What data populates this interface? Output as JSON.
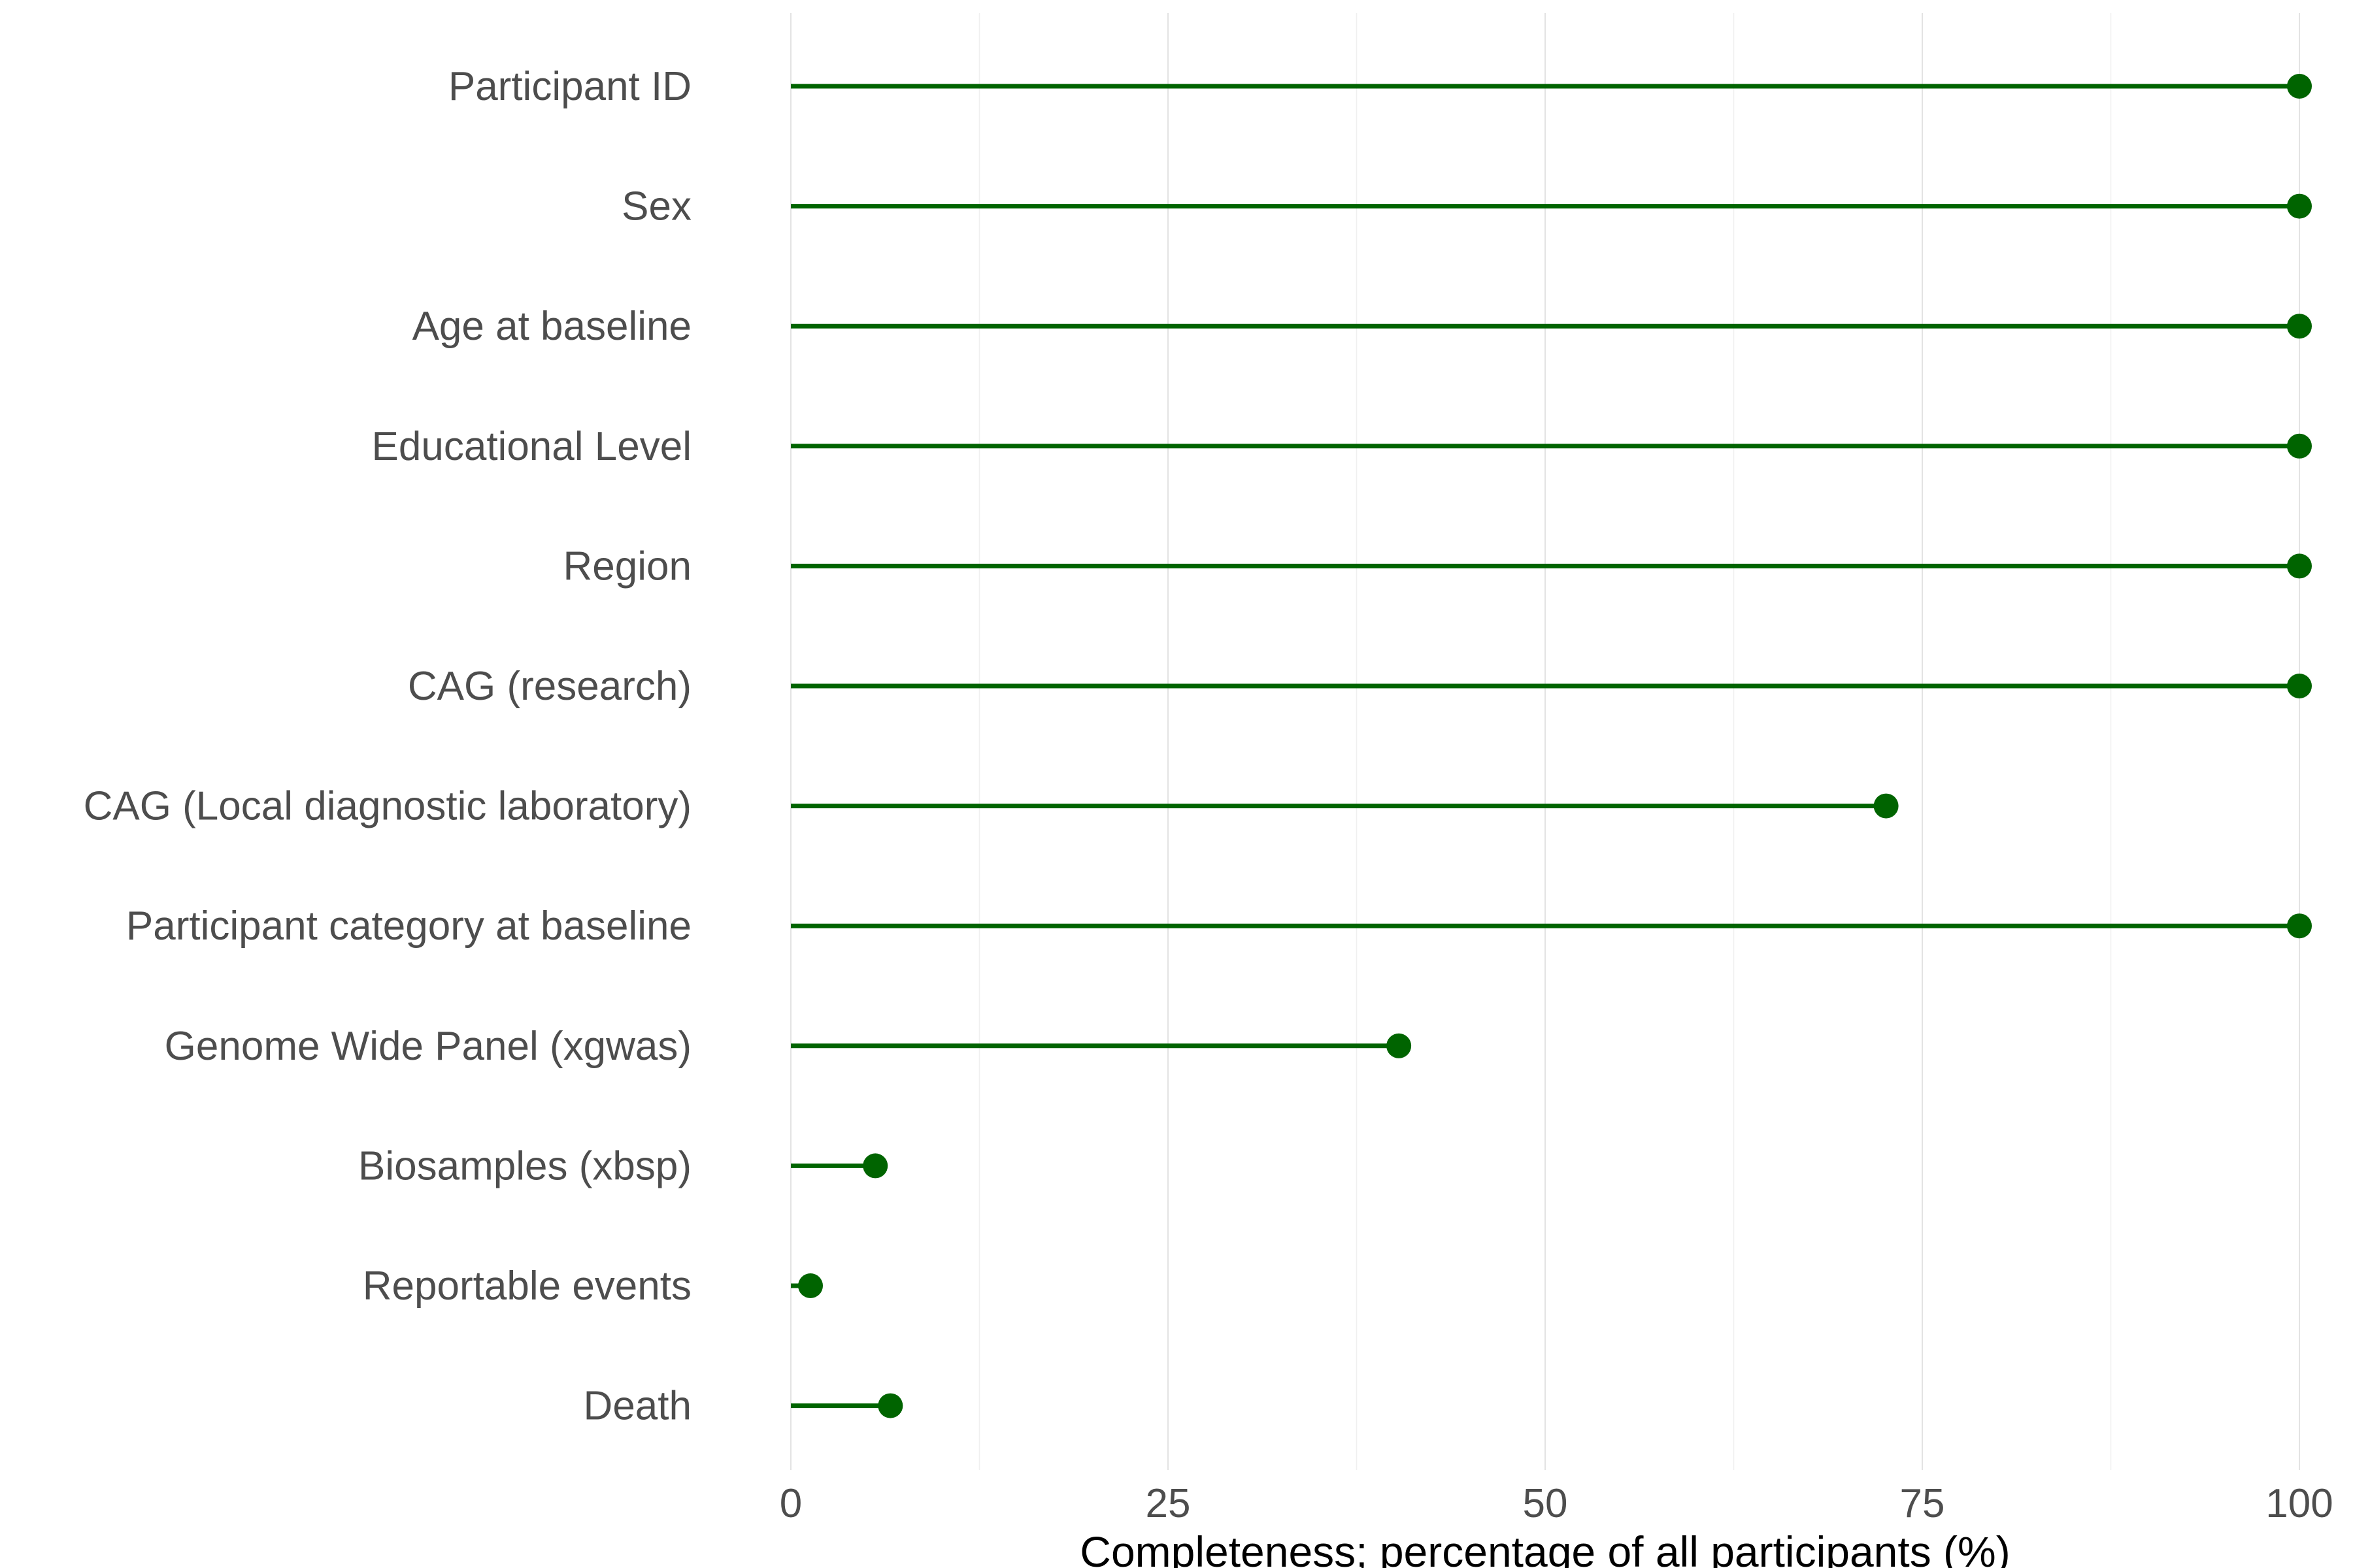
{
  "chart_data": {
    "type": "lollipop",
    "title": "",
    "xlabel": "Completeness; percentage of all participants (%)",
    "ylabel": "",
    "xlim": [
      0,
      100
    ],
    "x_ticks": [
      0,
      25,
      50,
      75,
      100
    ],
    "x_tick_labels": [
      "0",
      "25",
      "50",
      "75",
      "100"
    ],
    "grid": true,
    "legend": "none",
    "color": "#006400",
    "categories": [
      "Participant ID",
      "Sex",
      "Age at baseline",
      "Educational Level",
      "Region",
      "CAG (research)",
      "CAG (Local diagnostic laboratory)",
      "Participant category at baseline",
      "Genome Wide Panel (xgwas)",
      "Biosamples (xbsp)",
      "Reportable events",
      "Death"
    ],
    "values": [
      100,
      100,
      100,
      100,
      100,
      100,
      72.6,
      100,
      40.3,
      5.6,
      1.3,
      6.6
    ]
  }
}
